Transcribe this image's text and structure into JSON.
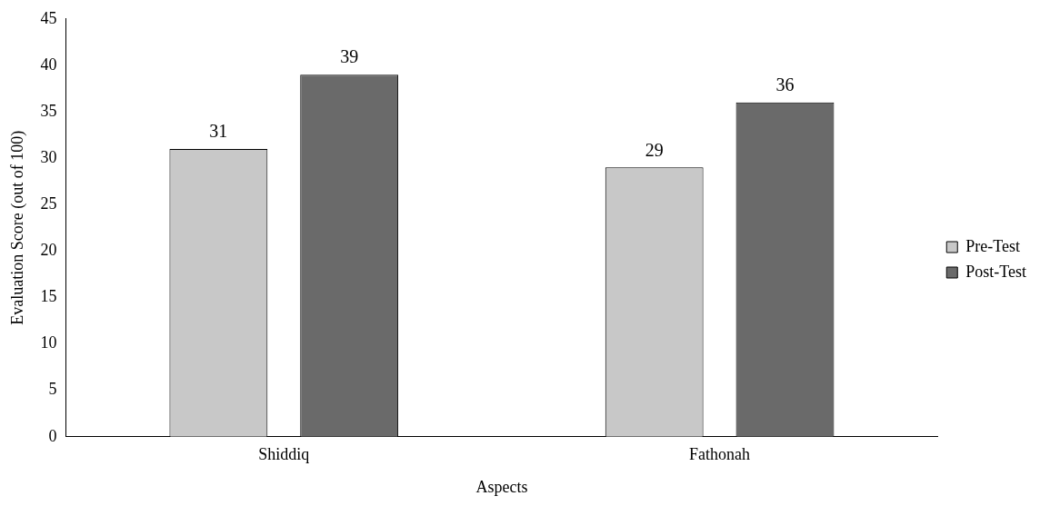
{
  "chart_data": {
    "type": "bar",
    "xlabel": "Aspects",
    "ylabel": "Evaluation Score (out of 100)",
    "categories": [
      "Shiddiq",
      "Fathonah"
    ],
    "series": [
      {
        "name": "Pre-Test",
        "color": "#c8c8c8",
        "values": [
          31,
          29
        ]
      },
      {
        "name": "Post-Test",
        "color": "#6a6a6a",
        "values": [
          39,
          36
        ]
      }
    ],
    "ylim": [
      0,
      45
    ],
    "yticks": [
      0,
      5,
      10,
      15,
      20,
      25,
      30,
      35,
      40,
      45
    ],
    "grid": false,
    "legend": "right",
    "data_labels": true
  }
}
